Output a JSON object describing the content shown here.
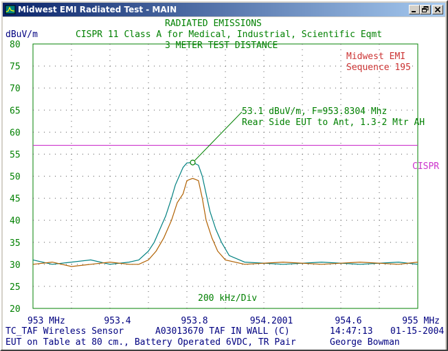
{
  "window": {
    "title": "Midwest EMI Radiated Test - MAIN"
  },
  "header": {
    "line1": "RADIATED EMISSIONS",
    "line2": "CISPR 11 Class A for Medical, Industrial, Scientific Eqmt",
    "line3": "3 METER TEST DISTANCE",
    "y_unit": "dBuV/m"
  },
  "lab": {
    "name": "Midwest EMI",
    "sequence": "Sequence 195"
  },
  "annotation": {
    "line1": "53.1 dBuV/m, F=953.8304 Mhz",
    "line2": "Rear Side EUT to Ant, 1.3-2 Mtr AH"
  },
  "limit_label": "CISPR",
  "div_label": "200 kHz/Div",
  "footer": {
    "row1_left": "TC_TAF Wireless Sensor",
    "row1_mid": "A03013670 TAF IN WALL (C)",
    "row1_time": "14:47:13",
    "row1_date": "01-15-2004",
    "row2_left": "EUT on Table at 80 cm., Battery Operated 6VDC, TR Pair",
    "row2_right": "George Bowman"
  },
  "colors": {
    "trace_teal": "#008080",
    "trace_orange": "#b06000",
    "limit_magenta": "#cc33cc",
    "text_green": "#008000",
    "text_navy": "#000080",
    "text_red": "#cc3333"
  },
  "chart_data": {
    "type": "line",
    "ylim": [
      20,
      80
    ],
    "yticks": [
      "80",
      "75",
      "70",
      "65",
      "60",
      "55",
      "50",
      "45",
      "40",
      "35",
      "30",
      "25",
      "20"
    ],
    "xlim": [
      953.0,
      955.0
    ],
    "xticks": [
      "953 MHz",
      "953.4",
      "953.8",
      "954.2001",
      "954.6",
      "955 MHz"
    ],
    "limit": {
      "name": "CISPR",
      "value": 57
    },
    "marker": {
      "x": 953.8304,
      "y": 53.1
    },
    "series": [
      {
        "points": [
          [
            953.0,
            31
          ],
          [
            953.1,
            30
          ],
          [
            953.2,
            30.5
          ],
          [
            953.3,
            31
          ],
          [
            953.4,
            30
          ],
          [
            953.5,
            30.5
          ],
          [
            953.55,
            31
          ],
          [
            953.6,
            33
          ],
          [
            953.63,
            35
          ],
          [
            953.66,
            38
          ],
          [
            953.69,
            41
          ],
          [
            953.72,
            45
          ],
          [
            953.74,
            48
          ],
          [
            953.76,
            50
          ],
          [
            953.78,
            52
          ],
          [
            953.8,
            53
          ],
          [
            953.83,
            53.1
          ],
          [
            953.86,
            52.5
          ],
          [
            953.88,
            50
          ],
          [
            953.9,
            46
          ],
          [
            953.92,
            42
          ],
          [
            953.95,
            38
          ],
          [
            953.98,
            35
          ],
          [
            954.02,
            32
          ],
          [
            954.1,
            30.5
          ],
          [
            954.3,
            30
          ],
          [
            954.5,
            30.5
          ],
          [
            954.7,
            30
          ],
          [
            954.9,
            30.5
          ],
          [
            955.0,
            30
          ]
        ]
      },
      {
        "points": [
          [
            953.0,
            30
          ],
          [
            953.1,
            30.5
          ],
          [
            953.2,
            29.5
          ],
          [
            953.3,
            30
          ],
          [
            953.4,
            30.5
          ],
          [
            953.5,
            30
          ],
          [
            953.55,
            30
          ],
          [
            953.6,
            31
          ],
          [
            953.64,
            33
          ],
          [
            953.68,
            36
          ],
          [
            953.7,
            38
          ],
          [
            953.72,
            40
          ],
          [
            953.75,
            44
          ],
          [
            953.78,
            46
          ],
          [
            953.8,
            49
          ],
          [
            953.83,
            49.5
          ],
          [
            953.86,
            49
          ],
          [
            953.88,
            45
          ],
          [
            953.9,
            40
          ],
          [
            953.93,
            36
          ],
          [
            953.96,
            33
          ],
          [
            954.0,
            31
          ],
          [
            954.1,
            30
          ],
          [
            954.3,
            30.5
          ],
          [
            954.5,
            30
          ],
          [
            954.7,
            30.5
          ],
          [
            954.9,
            30
          ],
          [
            955.0,
            30.5
          ]
        ]
      }
    ]
  }
}
